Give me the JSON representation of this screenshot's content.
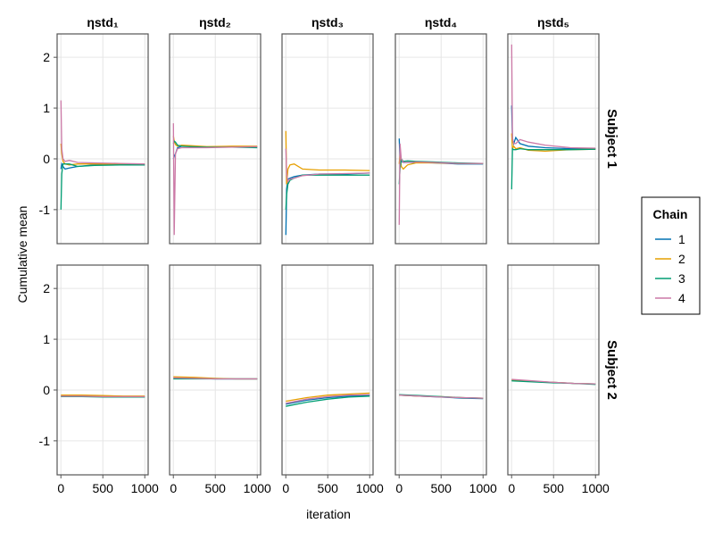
{
  "chart_data": {
    "type": "line",
    "title": "",
    "xlabel": "iteration",
    "ylabel": "Cumulative mean",
    "xlim": [
      -45,
      1040
    ],
    "ylim": [
      -1.67,
      2.46
    ],
    "xticks": [
      0,
      500,
      1000
    ],
    "xtick_labels": [
      "0",
      "500",
      "1000"
    ],
    "yticks": [
      -1,
      0,
      1,
      2
    ],
    "ytick_labels": [
      "-1",
      "0",
      "1",
      "2"
    ],
    "grid": true,
    "columns": [
      "ηstd₁",
      "ηstd₂",
      "ηstd₃",
      "ηstd₄",
      "ηstd₅"
    ],
    "rows": [
      "Subject 1",
      "Subject 2"
    ],
    "legend": {
      "title": "Chain",
      "placement": "right",
      "entries": [
        "1",
        "2",
        "3",
        "4"
      ]
    },
    "colors": [
      "#0072b2",
      "#e69f00",
      "#009e73",
      "#cc79a7"
    ],
    "x_row1": [
      1,
      10,
      25,
      50,
      100,
      200,
      400,
      700,
      1000
    ],
    "x_row2": [
      1,
      250,
      500,
      750,
      1000
    ],
    "panels": [
      [
        [
          [
            -0.2,
            -0.1,
            -0.15,
            -0.2,
            -0.18,
            -0.15,
            -0.12,
            -0.11,
            -0.12
          ],
          [
            0.3,
            0.1,
            -0.05,
            -0.1,
            -0.12,
            -0.1,
            -0.1,
            -0.1,
            -0.1
          ],
          [
            -1.0,
            -0.3,
            -0.1,
            -0.1,
            -0.1,
            -0.15,
            -0.13,
            -0.12,
            -0.12
          ],
          [
            1.15,
            0.2,
            0.0,
            -0.05,
            -0.03,
            -0.07,
            -0.08,
            -0.09,
            -0.1
          ]
        ],
        [
          [
            0.0,
            0.05,
            0.1,
            0.22,
            0.25,
            0.25,
            0.23,
            0.24,
            0.23
          ],
          [
            0.45,
            0.35,
            0.28,
            0.25,
            0.27,
            0.26,
            0.24,
            0.25,
            0.25
          ],
          [
            0.3,
            0.35,
            0.33,
            0.27,
            0.25,
            0.24,
            0.23,
            0.23,
            0.22
          ],
          [
            0.7,
            -1.5,
            0.1,
            0.2,
            0.22,
            0.22,
            0.22,
            0.23,
            0.24
          ]
        ],
        [
          [
            -1.5,
            -0.6,
            -0.4,
            -0.38,
            -0.35,
            -0.32,
            -0.3,
            -0.3,
            -0.28
          ],
          [
            0.55,
            -0.5,
            -0.2,
            -0.12,
            -0.1,
            -0.2,
            -0.22,
            -0.22,
            -0.23
          ],
          [
            -1.0,
            -0.7,
            -0.5,
            -0.42,
            -0.38,
            -0.32,
            -0.32,
            -0.32,
            -0.32
          ],
          [
            0.2,
            -0.3,
            -0.45,
            -0.4,
            -0.38,
            -0.33,
            -0.3,
            -0.29,
            -0.28
          ]
        ],
        [
          [
            0.4,
            0.0,
            -0.05,
            -0.07,
            -0.07,
            -0.07,
            -0.08,
            -0.1,
            -0.1
          ],
          [
            -0.1,
            0.1,
            -0.15,
            -0.2,
            -0.12,
            -0.08,
            -0.08,
            -0.09,
            -0.09
          ],
          [
            -0.5,
            -0.2,
            0.0,
            -0.05,
            -0.04,
            -0.05,
            -0.06,
            -0.08,
            -0.09
          ],
          [
            -1.3,
            0.3,
            0.0,
            -0.07,
            -0.07,
            -0.06,
            -0.07,
            -0.09,
            -0.09
          ]
        ],
        [
          [
            1.05,
            0.4,
            0.3,
            0.42,
            0.3,
            0.25,
            0.22,
            0.2,
            0.2
          ],
          [
            0.5,
            0.2,
            0.25,
            0.2,
            0.22,
            0.17,
            0.15,
            0.18,
            0.19
          ],
          [
            -0.6,
            0.2,
            0.18,
            0.18,
            0.2,
            0.18,
            0.18,
            0.18,
            0.19
          ],
          [
            2.25,
            0.4,
            0.3,
            0.3,
            0.38,
            0.33,
            0.27,
            0.22,
            0.21
          ]
        ]
      ],
      [
        [
          [
            -0.12,
            -0.13,
            -0.13,
            -0.14,
            -0.14
          ],
          [
            -0.1,
            -0.1,
            -0.11,
            -0.12,
            -0.12
          ],
          [
            -0.13,
            -0.13,
            -0.14,
            -0.14,
            -0.14
          ],
          [
            -0.12,
            -0.12,
            -0.13,
            -0.13,
            -0.13
          ]
        ],
        [
          [
            0.23,
            0.23,
            0.22,
            0.22,
            0.22
          ],
          [
            0.26,
            0.25,
            0.23,
            0.22,
            0.22
          ],
          [
            0.22,
            0.22,
            0.22,
            0.22,
            0.22
          ],
          [
            0.24,
            0.23,
            0.22,
            0.22,
            0.22
          ]
        ],
        [
          [
            -0.28,
            -0.2,
            -0.15,
            -0.12,
            -0.1
          ],
          [
            -0.22,
            -0.15,
            -0.1,
            -0.08,
            -0.06
          ],
          [
            -0.32,
            -0.24,
            -0.18,
            -0.14,
            -0.12
          ],
          [
            -0.26,
            -0.18,
            -0.13,
            -0.1,
            -0.09
          ]
        ],
        [
          [
            -0.1,
            -0.12,
            -0.14,
            -0.16,
            -0.17
          ],
          [
            -0.1,
            -0.12,
            -0.13,
            -0.15,
            -0.16
          ],
          [
            -0.09,
            -0.11,
            -0.13,
            -0.15,
            -0.16
          ],
          [
            -0.1,
            -0.12,
            -0.14,
            -0.15,
            -0.16
          ]
        ],
        [
          [
            0.2,
            0.17,
            0.15,
            0.13,
            0.12
          ],
          [
            0.19,
            0.17,
            0.15,
            0.13,
            0.12
          ],
          [
            0.18,
            0.16,
            0.14,
            0.13,
            0.11
          ],
          [
            0.21,
            0.18,
            0.15,
            0.13,
            0.12
          ]
        ]
      ]
    ]
  }
}
